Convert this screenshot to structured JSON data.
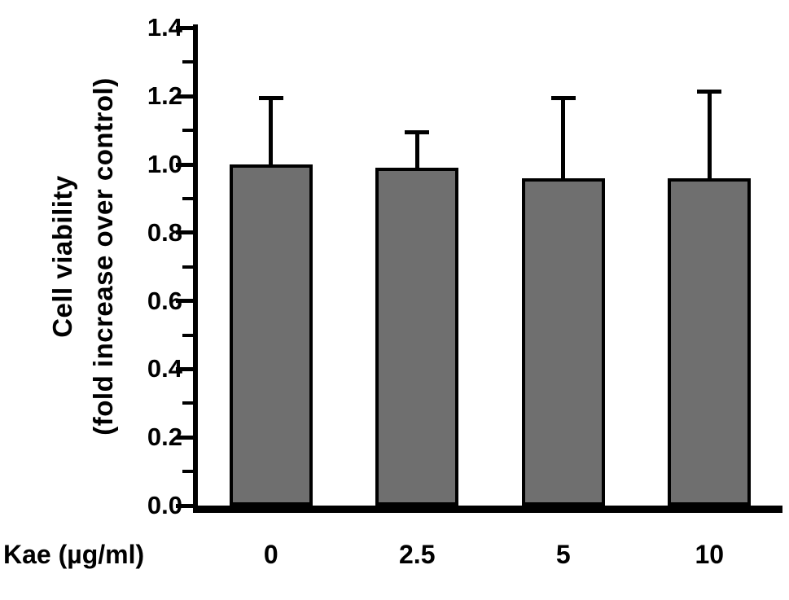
{
  "chart_data": {
    "type": "bar",
    "title": "",
    "xlabel": "Kae (µg/ml)",
    "ylabel_line1": "Cell viability",
    "ylabel_line2": "(fold increase over control)",
    "categories": [
      "0",
      "2.5",
      "5",
      "10"
    ],
    "values": [
      1.0,
      0.99,
      0.96,
      0.96
    ],
    "error_tops": [
      1.2,
      1.1,
      1.2,
      1.22
    ],
    "ylim": [
      0,
      1.4
    ],
    "ytick_step": 0.2,
    "yticks": [
      "0.0",
      "0.2",
      "0.4",
      "0.6",
      "0.8",
      "1.0",
      "1.2",
      "1.4"
    ],
    "minor_tick_step": 0.1,
    "legend": "none",
    "grid": "off",
    "bar_color": "#6f6f6f",
    "axis_color": "#000000",
    "error_bar_color": "#000000"
  }
}
